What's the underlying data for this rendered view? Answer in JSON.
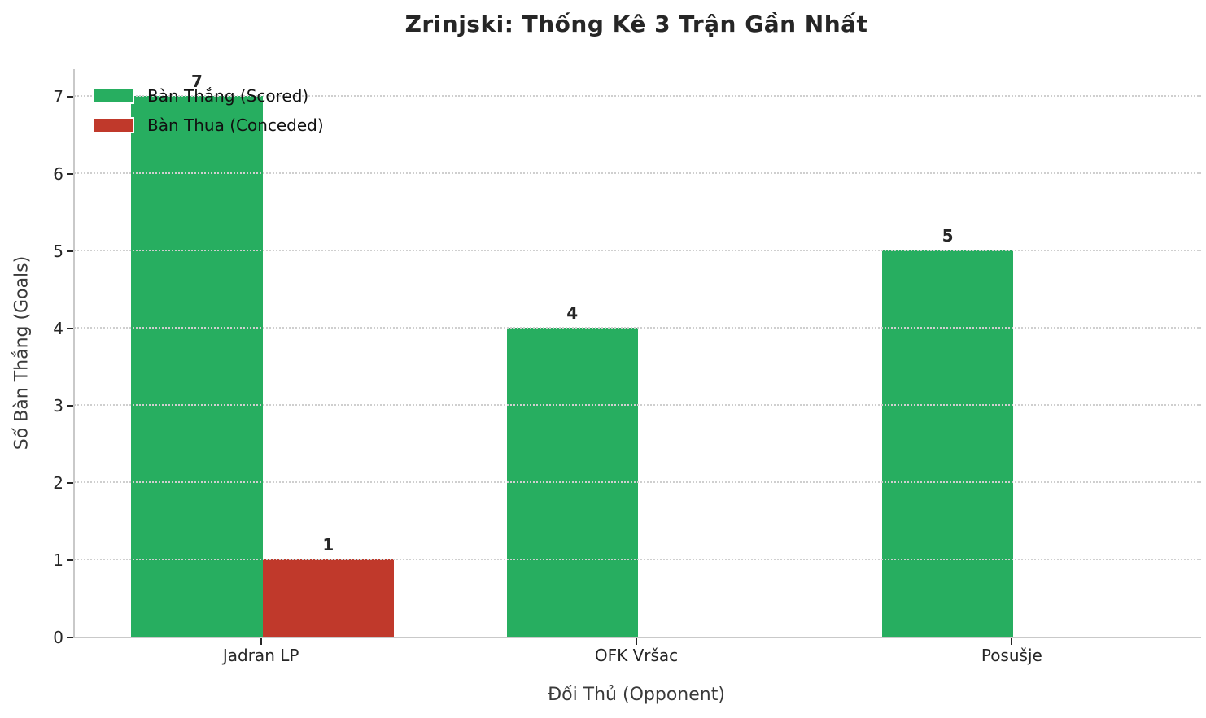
{
  "chart_data": {
    "type": "bar",
    "title": "Zrinjski: Thống Kê 3 Trận Gần Nhất",
    "xlabel": "Đối Thủ (Opponent)",
    "ylabel": "Số Bàn Thắng (Goals)",
    "categories": [
      "Jadran LP",
      "OFK Vršac",
      "Posušje"
    ],
    "series": [
      {
        "name": "Bàn Thắng (Scored)",
        "color": "#27ae60",
        "values": [
          7,
          4,
          5
        ]
      },
      {
        "name": "Bàn Thua (Conceded)",
        "color": "#c0392b",
        "values": [
          1,
          0,
          0
        ]
      }
    ],
    "bar_value_labels": {
      "scored": [
        "7",
        "4",
        "5"
      ],
      "conceded": [
        "1",
        "",
        ""
      ]
    },
    "yticks": [
      0,
      1,
      2,
      3,
      4,
      5,
      6,
      7
    ],
    "ylim": [
      0,
      7.35
    ],
    "bar_width_fraction": 0.35,
    "grid": "horizontal dotted, drawn above bars",
    "legend_position": "upper-left, no frame",
    "colors": {
      "scored_green": "#27ae60",
      "conceded_red": "#c0392b",
      "gridline": "#cfcfcf",
      "spine": "#c9c9c9",
      "text": "#262626",
      "background": "#ffffff"
    }
  }
}
